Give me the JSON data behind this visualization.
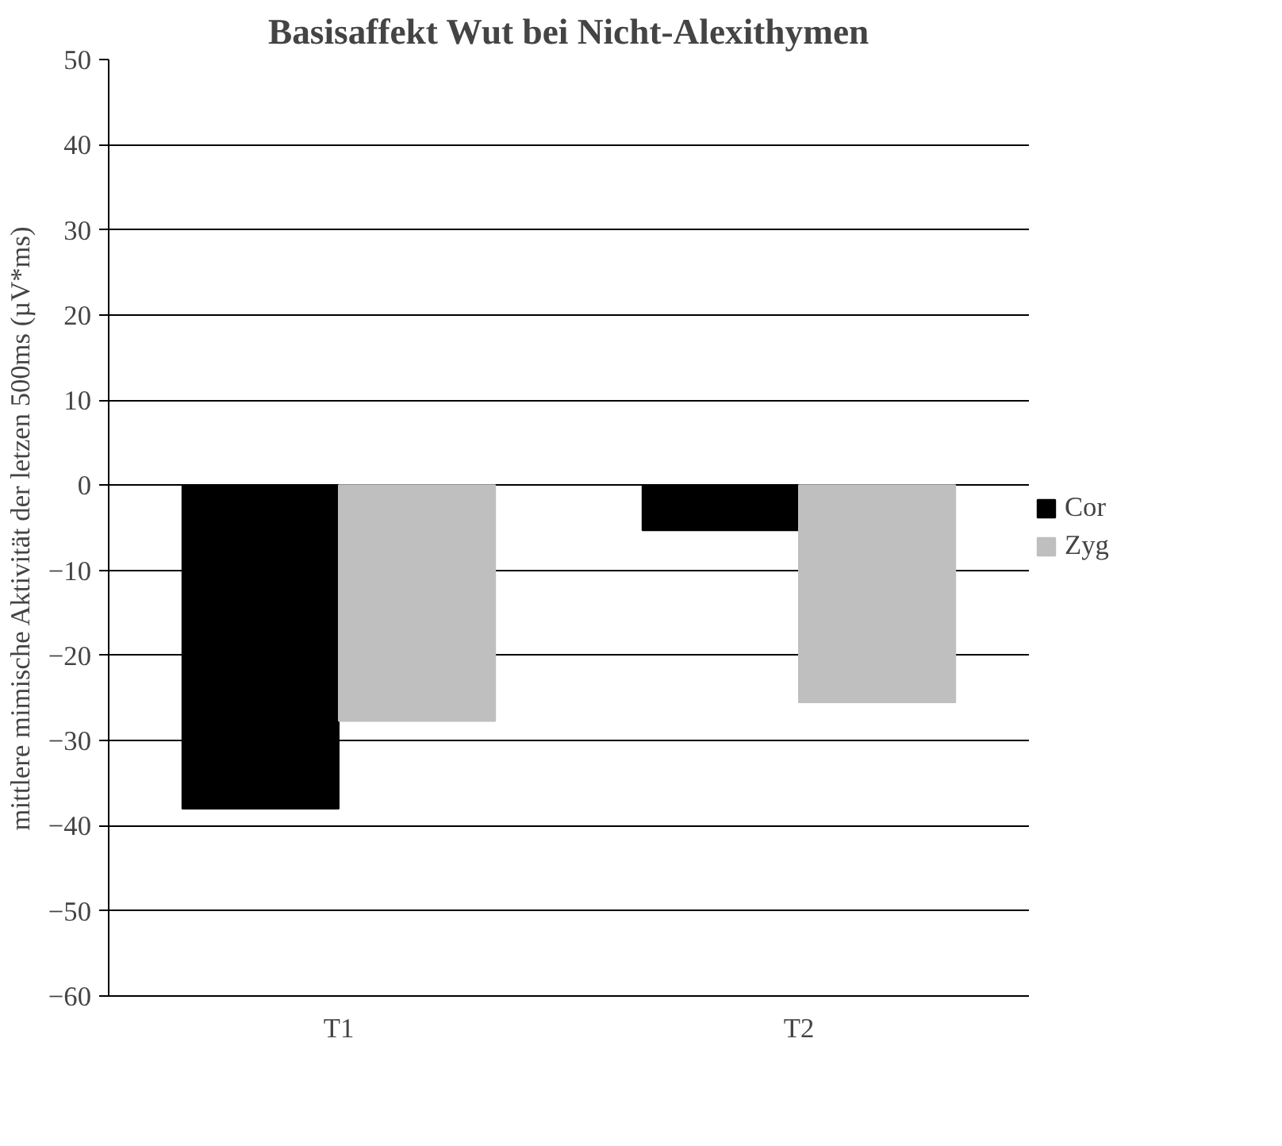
{
  "chart_data": {
    "type": "bar",
    "title": "Basisaffekt Wut bei Nicht-Alexithymen",
    "ylabel": "mittlere mimische Aktivität der letzen 500ms (µV*ms)",
    "categories": [
      "T1",
      "T2"
    ],
    "series": [
      {
        "name": "Cor",
        "color": "#000000",
        "values": [
          -38,
          -5.3
        ]
      },
      {
        "name": "Zyg",
        "color": "#bfbfbf",
        "values": [
          -27.7,
          -25.5
        ]
      }
    ],
    "ylim": [
      -60,
      50
    ],
    "yticks": [
      -60,
      -50,
      -40,
      -30,
      -20,
      -10,
      0,
      10,
      20,
      30,
      40,
      50
    ],
    "grid": "y",
    "legend": "right"
  }
}
